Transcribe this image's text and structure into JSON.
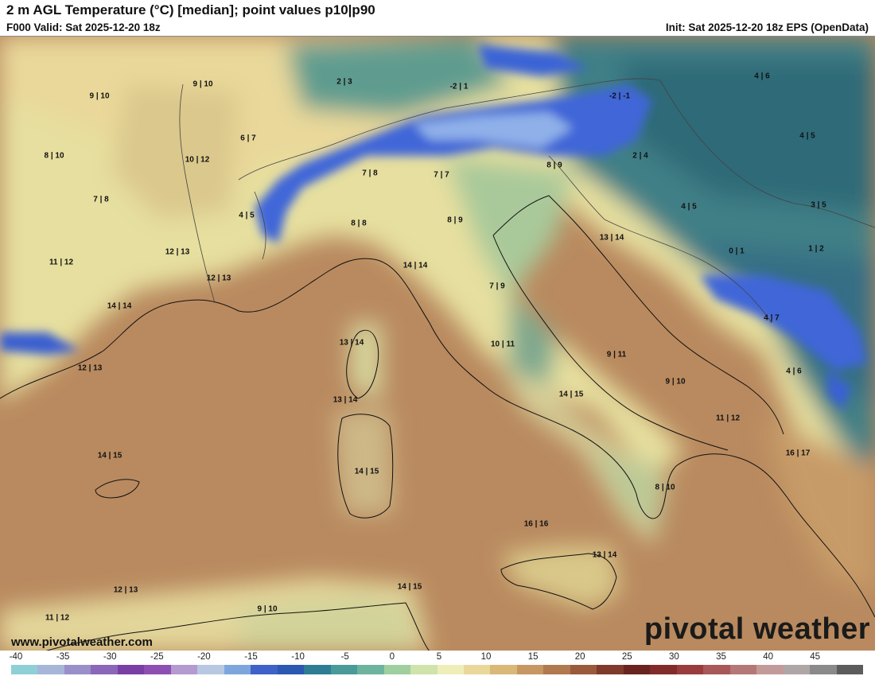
{
  "header": {
    "title": "2 m AGL Temperature (°C) [median]; point values p10|p90",
    "valid": "F000 Valid: Sat 2025-12-20 18z",
    "init": "Init: Sat 2025-12-20 18z EPS (OpenData)"
  },
  "map": {
    "point_values": [
      {
        "label": "9 | 10"
      },
      {
        "label": "9 | 10"
      },
      {
        "label": "2 | 3"
      },
      {
        "label": "-2 | 1"
      },
      {
        "label": "-2 | -1"
      },
      {
        "label": "4 | 6"
      },
      {
        "label": "8 | 10"
      },
      {
        "label": "6 | 7"
      },
      {
        "label": "10 | 12"
      },
      {
        "label": "7 | 8"
      },
      {
        "label": "7 | 7"
      },
      {
        "label": "8 | 9"
      },
      {
        "label": "2 | 4"
      },
      {
        "label": "4 | 5"
      },
      {
        "label": "7 | 8"
      },
      {
        "label": "4 | 5"
      },
      {
        "label": "8 | 8"
      },
      {
        "label": "8 | 9"
      },
      {
        "label": "4 | 5"
      },
      {
        "label": "3 | 5"
      },
      {
        "label": "13 | 14"
      },
      {
        "label": "0 | 1"
      },
      {
        "label": "1 | 2"
      },
      {
        "label": "11 | 12"
      },
      {
        "label": "12 | 13"
      },
      {
        "label": "12 | 13"
      },
      {
        "label": "14 | 14"
      },
      {
        "label": "7 | 9"
      },
      {
        "label": "14 | 14"
      },
      {
        "label": "4 | 7"
      },
      {
        "label": "13 | 14"
      },
      {
        "label": "10 | 11"
      },
      {
        "label": "9 | 11"
      },
      {
        "label": "12 | 13"
      },
      {
        "label": "4 | 6"
      },
      {
        "label": "9 | 10"
      },
      {
        "label": "14 | 15"
      },
      {
        "label": "13 | 14"
      },
      {
        "label": "11 | 12"
      },
      {
        "label": "14 | 15"
      },
      {
        "label": "16 | 17"
      },
      {
        "label": "14 | 15"
      },
      {
        "label": "8 | 10"
      },
      {
        "label": "16 | 16"
      },
      {
        "label": "13 | 14"
      },
      {
        "label": "12 | 13"
      },
      {
        "label": "14 | 15"
      },
      {
        "label": "11 | 12"
      },
      {
        "label": "9 | 10"
      }
    ]
  },
  "footer": {
    "website": "www.pivotalweather.com",
    "logo": "pivotal weather"
  },
  "legend": {
    "ticks": [
      "-40",
      "-35",
      "-30",
      "-25",
      "-20",
      "-15",
      "-10",
      "-5",
      "0",
      "5",
      "10",
      "15",
      "20",
      "25",
      "30",
      "35",
      "40",
      "45"
    ],
    "colors": [
      "#8fd0d6",
      "#a7b6d8",
      "#9a8fc9",
      "#8a67b8",
      "#7a3fa5",
      "#8e4fb3",
      "#b59ad0",
      "#b8c8e2",
      "#7fa6dc",
      "#3f62c8",
      "#2b58b0",
      "#2e7d95",
      "#4a9a9a",
      "#6eb39d",
      "#9fcf9f",
      "#cfe3ab",
      "#efeeb8",
      "#e9d89a",
      "#d9b878",
      "#c69762",
      "#b07a4e",
      "#9a5a3c",
      "#7f3a2c",
      "#6a2420",
      "#822b2b",
      "#9a3c3c",
      "#a85858",
      "#b57878",
      "#c39a9a",
      "#b0a6a6",
      "#8a8a8a",
      "#5c5c5c"
    ]
  }
}
